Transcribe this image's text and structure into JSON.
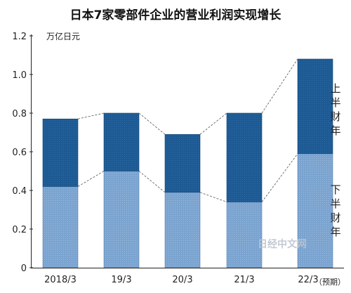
{
  "chart_data": {
    "type": "bar",
    "stacked": true,
    "title": "日本7家零部件企业的营业利润实现增长",
    "ylabel": "万亿日元",
    "ylim": [
      0,
      1.2
    ],
    "yticks": [
      "0",
      "0.2",
      "0.4",
      "0.6",
      "0.8",
      "1.0",
      "1.2"
    ],
    "categories": [
      "2018/3",
      "19/3",
      "20/3",
      "21/3",
      "22/3"
    ],
    "forecast_note": "（预期）",
    "series": [
      {
        "name": "下半财年",
        "values": [
          0.42,
          0.5,
          0.39,
          0.34,
          0.59
        ],
        "color": "#7aa3cf"
      },
      {
        "name": "上半财年",
        "values": [
          0.35,
          0.3,
          0.3,
          0.46,
          0.49
        ],
        "color": "#1d5a93"
      }
    ],
    "connector_lines": "dashed",
    "grid": false,
    "legend": "right (inline labels)"
  },
  "watermark": "日经中文网"
}
